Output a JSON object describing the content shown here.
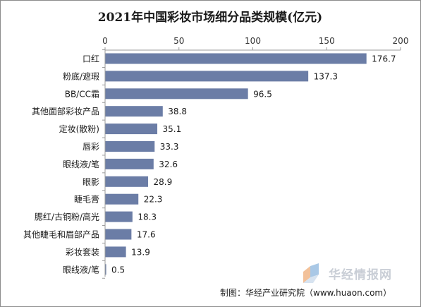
{
  "chart_data": {
    "type": "bar",
    "orientation": "horizontal",
    "title": "2021年中国彩妆市场细分品类规模(亿元)",
    "categories": [
      "口红",
      "粉底/遮瑕",
      "BB/CC霜",
      "其他面部彩妆产品",
      "定妆(散粉)",
      "唇彩",
      "眼线液/笔",
      "眼影",
      "睫毛膏",
      "腮红/古铜粉/高光",
      "其他睫毛和眉部产品",
      "彩妆套装",
      "眼线液/笔"
    ],
    "values": [
      176.7,
      137.3,
      96.5,
      38.8,
      35.1,
      33.3,
      32.6,
      28.9,
      22.3,
      18.3,
      17.6,
      13.9,
      0.5
    ],
    "value_labels": [
      "176.7",
      "137.3",
      "96.5",
      "38.8",
      "35.1",
      "33.3",
      "32.6",
      "28.9",
      "22.3",
      "18.3",
      "17.6",
      "13.9",
      "0.5"
    ],
    "x_ticks": [
      "0",
      "50",
      "100",
      "150",
      "200"
    ],
    "xlim": [
      0,
      200
    ],
    "x_axis_position": "top",
    "grid": false,
    "bar_color": "#6b7da6",
    "source": "制图：华经产业研究院（www.huaon.com）",
    "watermark": "华经情报网"
  }
}
